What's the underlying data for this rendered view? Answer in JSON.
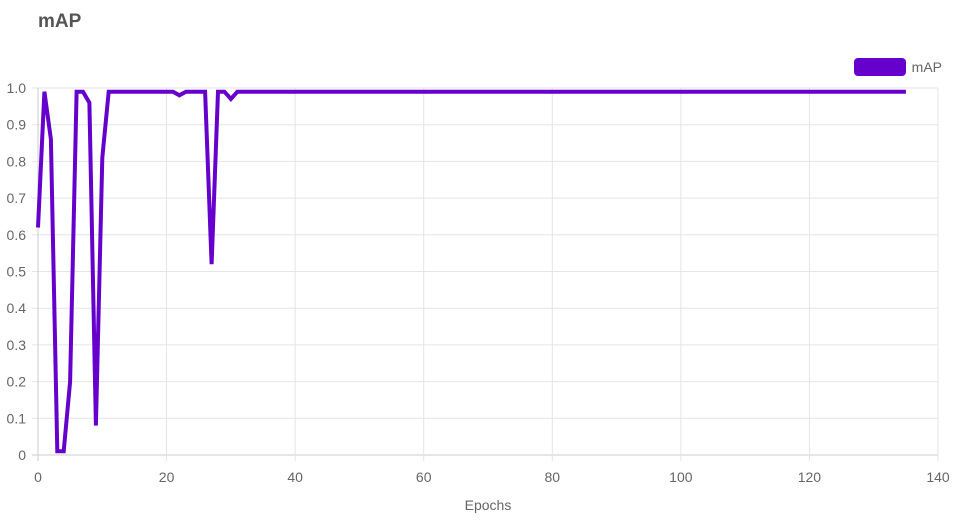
{
  "chart_data": {
    "type": "line",
    "title": "mAP",
    "xlabel": "Epochs",
    "ylabel": "",
    "xlim": [
      0,
      140
    ],
    "ylim": [
      0,
      1.0
    ],
    "x_ticks": [
      "0",
      "20",
      "40",
      "60",
      "80",
      "100",
      "120",
      "140"
    ],
    "y_ticks": [
      "0",
      "0.1",
      "0.2",
      "0.3",
      "0.4",
      "0.5",
      "0.6",
      "0.7",
      "0.8",
      "0.9",
      "1.0"
    ],
    "grid": true,
    "legend_position": "top-right",
    "series": [
      {
        "name": "mAP",
        "color": "#6600cc",
        "points": [
          [
            0,
            0.62
          ],
          [
            1,
            0.99
          ],
          [
            2,
            0.86
          ],
          [
            3,
            0.01
          ],
          [
            4,
            0.01
          ],
          [
            5,
            0.2
          ],
          [
            6,
            0.99
          ],
          [
            7,
            0.99
          ],
          [
            8,
            0.96
          ],
          [
            9,
            0.08
          ],
          [
            10,
            0.81
          ],
          [
            11,
            0.99
          ],
          [
            12,
            0.99
          ],
          [
            13,
            0.99
          ],
          [
            14,
            0.99
          ],
          [
            15,
            0.99
          ],
          [
            16,
            0.99
          ],
          [
            17,
            0.99
          ],
          [
            18,
            0.99
          ],
          [
            19,
            0.99
          ],
          [
            20,
            0.99
          ],
          [
            21,
            0.99
          ],
          [
            22,
            0.98
          ],
          [
            23,
            0.99
          ],
          [
            24,
            0.99
          ],
          [
            25,
            0.99
          ],
          [
            26,
            0.99
          ],
          [
            27,
            0.52
          ],
          [
            28,
            0.99
          ],
          [
            29,
            0.99
          ],
          [
            30,
            0.97
          ],
          [
            31,
            0.99
          ],
          [
            32,
            0.99
          ],
          [
            40,
            0.99
          ],
          [
            60,
            0.99
          ],
          [
            80,
            0.99
          ],
          [
            100,
            0.99
          ],
          [
            120,
            0.99
          ],
          [
            135,
            0.99
          ]
        ]
      }
    ]
  }
}
